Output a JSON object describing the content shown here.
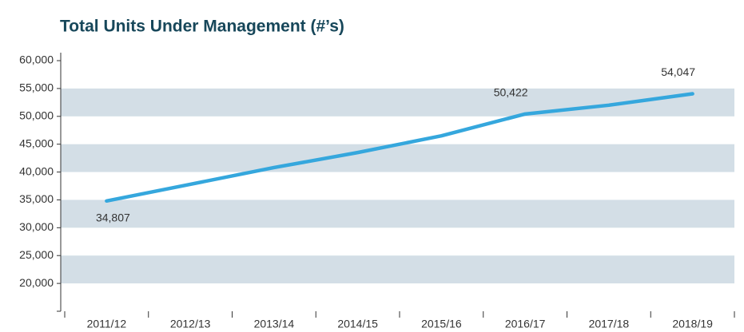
{
  "chart_data": {
    "type": "line",
    "title": "Total Units Under Management (#’s)",
    "categories": [
      "2011/12",
      "2012/13",
      "2013/14",
      "2014/15",
      "2015/16",
      "2016/17",
      "2017/18",
      "2018/19"
    ],
    "values": [
      34807,
      37800,
      40800,
      43500,
      46500,
      50422,
      52000,
      54047
    ],
    "value_labels": [
      "34,807",
      null,
      null,
      null,
      null,
      "50,422",
      null,
      "54,047"
    ],
    "color": "#35a7dd",
    "band_color": "#d3dee6",
    "ylim": [
      15000,
      60000
    ],
    "yticks": [
      {
        "value": 20000,
        "label": "20,000"
      },
      {
        "value": 25000,
        "label": "25,000"
      },
      {
        "value": 30000,
        "label": "30,000"
      },
      {
        "value": 35000,
        "label": "35,000"
      },
      {
        "value": 40000,
        "label": "40,000"
      },
      {
        "value": 45000,
        "label": "45,000"
      },
      {
        "value": 50000,
        "label": "50,000"
      },
      {
        "value": 55000,
        "label": "55,000"
      },
      {
        "value": 60000,
        "label": "60,000"
      }
    ]
  }
}
